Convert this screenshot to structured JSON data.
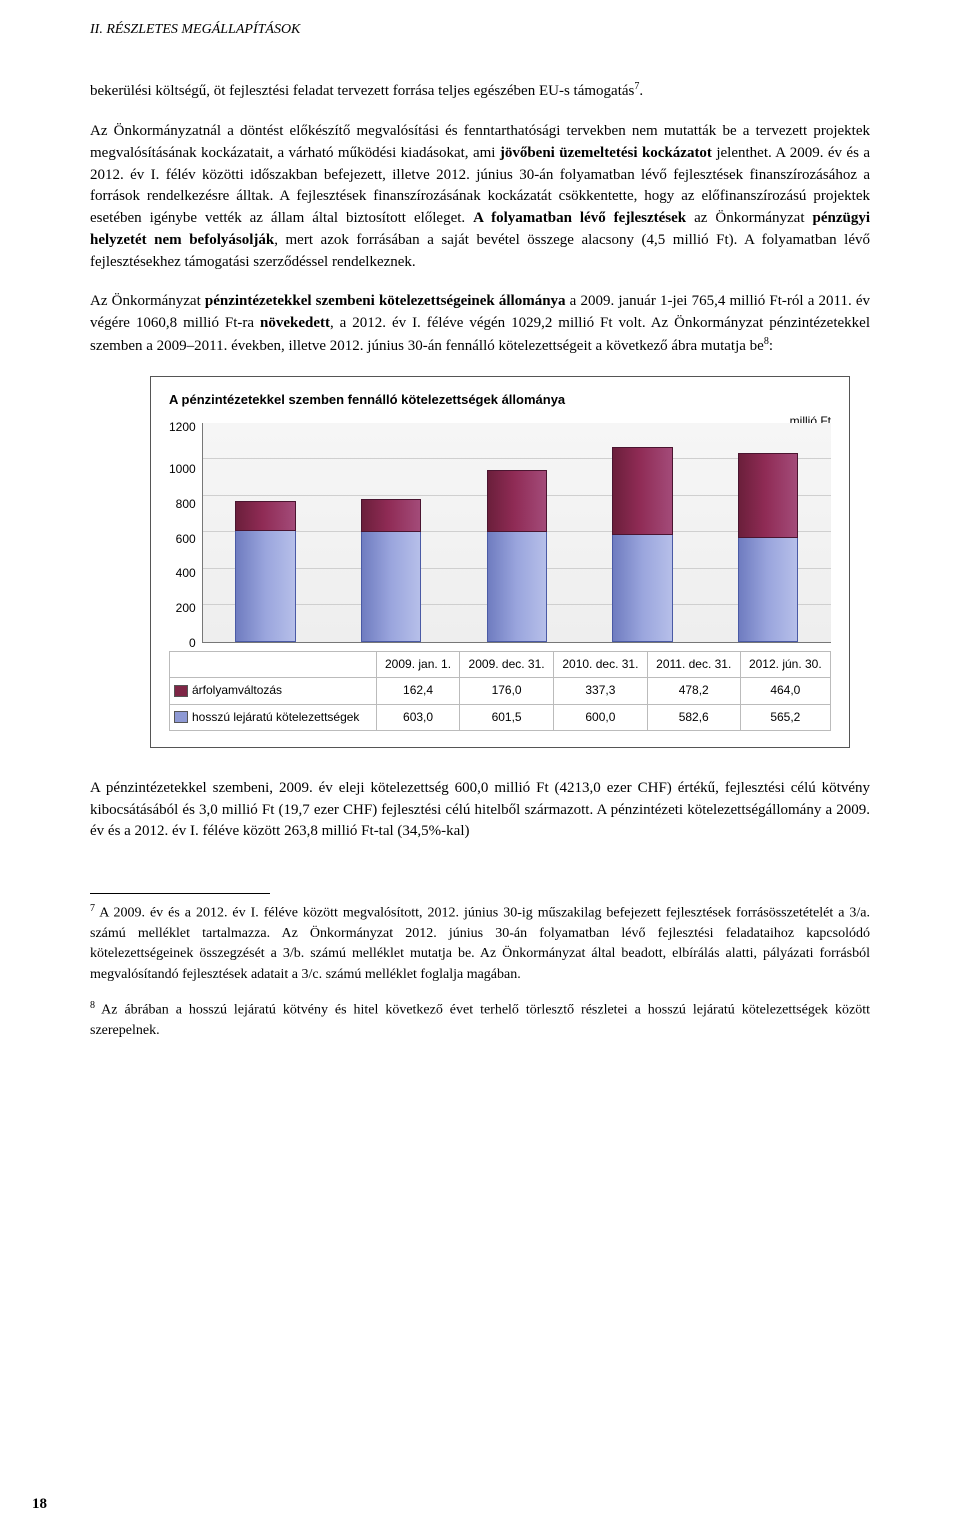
{
  "running_head": "II. RÉSZLETES MEGÁLLAPÍTÁSOK",
  "para1_a": "bekerülési költségű, öt fejlesztési feladat tervezett forrása teljes egészében EU-s támogatás",
  "para1_sup": "7",
  "para1_b": ".",
  "para2_a": "Az Önkormányzatnál a döntést előkészítő megvalósítási és fenntarthatósági tervekben nem mutatták be a tervezett projektek megvalósításának kockázatait, a várható működési kiadásokat, ami ",
  "para2_b": "jövőbeni üzemeltetési kockázatot",
  "para2_c": " jelenthet. A 2009. év és a 2012. év I. félév közötti időszakban befejezett, illetve 2012. június 30-án folyamatban lévő fejlesztések finanszírozásához a források rendelkezésre álltak. A fejlesztések finanszírozásának kockázatát csökkentette, hogy az előfinanszírozású projektek esetében igénybe vették az állam által biztosított előleget. ",
  "para2_d": "A folyamatban lévő fejlesztések",
  "para2_e": " az Önkormányzat ",
  "para2_f": "pénzügyi helyzetét nem befolyásolják",
  "para2_g": ", mert azok forrásában a saját bevétel összege alacsony (4,5 millió Ft). A folyamatban lévő fejlesztésekhez támogatási szerződéssel rendelkeznek.",
  "para3_a": "Az Önkormányzat ",
  "para3_b": "pénzintézetekkel szembeni kötelezettségeinek állománya",
  "para3_c": " a 2009. január 1-jei 765,4 millió Ft-ról a 2011. év végére 1060,8 millió Ft-ra ",
  "para3_d": "növekedett",
  "para3_e": ", a 2012. év I. féléve végén 1029,2 millió Ft volt. Az Önkormányzat pénzintézetekkel szemben a 2009–2011. években, illetve 2012. június 30-án fennálló kötelezettségeit a következő ábra mutatja be",
  "para3_sup": "8",
  "para3_f": ":",
  "chart": {
    "title": "A pénzintézetekkel szemben fennálló kötelezettségek állománya",
    "unit": "millió Ft",
    "ymax": 1200,
    "yticks": [
      "1200",
      "1000",
      "800",
      "600",
      "400",
      "200",
      "0"
    ],
    "categories": [
      "2009. jan. 1.",
      "2009. dec. 31.",
      "2010. dec. 31.",
      "2011. dec. 31.",
      "2012. jún. 30."
    ],
    "series": [
      {
        "name": "árfolyamváltozás",
        "color_class": "sw-top",
        "values": [
          "162,4",
          "176,0",
          "337,3",
          "478,2",
          "464,0"
        ],
        "num": [
          162.4,
          176.0,
          337.3,
          478.2,
          464.0
        ]
      },
      {
        "name": "hosszú lejáratú kötelezettségek",
        "color_class": "sw-bot",
        "values": [
          "603,0",
          "601,5",
          "600,0",
          "582,6",
          "565,2"
        ],
        "num": [
          603.0,
          601.5,
          600.0,
          582.6,
          565.2
        ]
      }
    ]
  },
  "para4": "A pénzintézetekkel szembeni, 2009. év eleji kötelezettség 600,0 millió Ft (4213,0 ezer CHF) értékű, fejlesztési célú kötvény kibocsátásából és 3,0 millió Ft (19,7 ezer CHF) fejlesztési célú hitelből származott. A pénzintézeti kötelezettségállomány a 2009. év és a 2012. év I. féléve között 263,8 millió Ft-tal (34,5%-kal)",
  "fn7_sup": "7",
  "fn7": " A 2009. év és a 2012. év I. féléve között megvalósított, 2012. június 30-ig műszakilag befejezett fejlesztések forrásösszetételét a 3/a. számú melléklet tartalmazza. Az Önkormányzat 2012. június 30-án folyamatban lévő fejlesztési feladataihoz kapcsolódó kötelezettségeinek összegzését a 3/b. számú melléklet mutatja be. Az Önkormányzat által beadott, elbírálás alatti, pályázati forrásból megvalósítandó fejlesztések adatait a 3/c. számú melléklet foglalja magában.",
  "fn8_sup": "8",
  "fn8": " Az ábrában a hosszú lejáratú kötvény és hitel következő évet terhelő törlesztő részletei a hosszú lejáratú kötelezettségek között szerepelnek.",
  "page_number": "18"
}
